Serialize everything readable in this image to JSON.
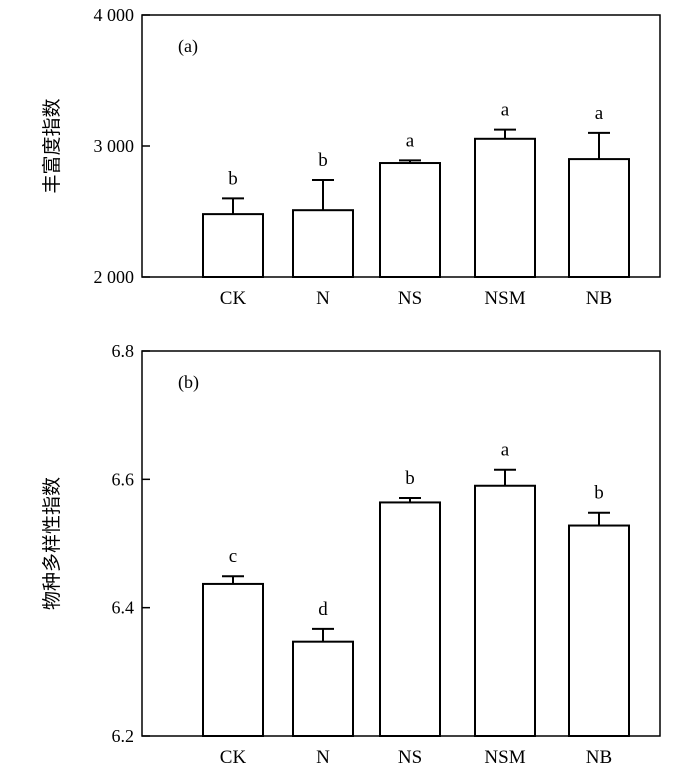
{
  "chart_data": [
    {
      "type": "bar",
      "panel_label": "(a)",
      "ylabel": "丰富度指数",
      "categories": [
        "CK",
        "N",
        "NS",
        "NSM",
        "NB"
      ],
      "values": [
        2480,
        2510,
        2870,
        3055,
        2900
      ],
      "errors": [
        120,
        230,
        20,
        70,
        200
      ],
      "significance": [
        "b",
        "b",
        "a",
        "a",
        "a"
      ],
      "ylim": [
        2000,
        4000
      ],
      "yticks": [
        2000,
        3000,
        4000
      ],
      "ytick_labels": [
        "2 000",
        "3 000",
        "4 000"
      ],
      "grid": false,
      "legend": "none"
    },
    {
      "type": "bar",
      "panel_label": "(b)",
      "ylabel": "物种多样性指数",
      "categories": [
        "CK",
        "N",
        "NS",
        "NSM",
        "NB"
      ],
      "values": [
        6.437,
        6.347,
        6.564,
        6.59,
        6.528
      ],
      "errors": [
        0.012,
        0.02,
        0.007,
        0.025,
        0.02
      ],
      "significance": [
        "c",
        "d",
        "b",
        "a",
        "b"
      ],
      "ylim": [
        6.2,
        6.8
      ],
      "yticks": [
        6.2,
        6.4,
        6.6,
        6.8
      ],
      "ytick_labels": [
        "6.2",
        "6.4",
        "6.6",
        "6.8"
      ],
      "grid": false,
      "legend": "none"
    }
  ]
}
